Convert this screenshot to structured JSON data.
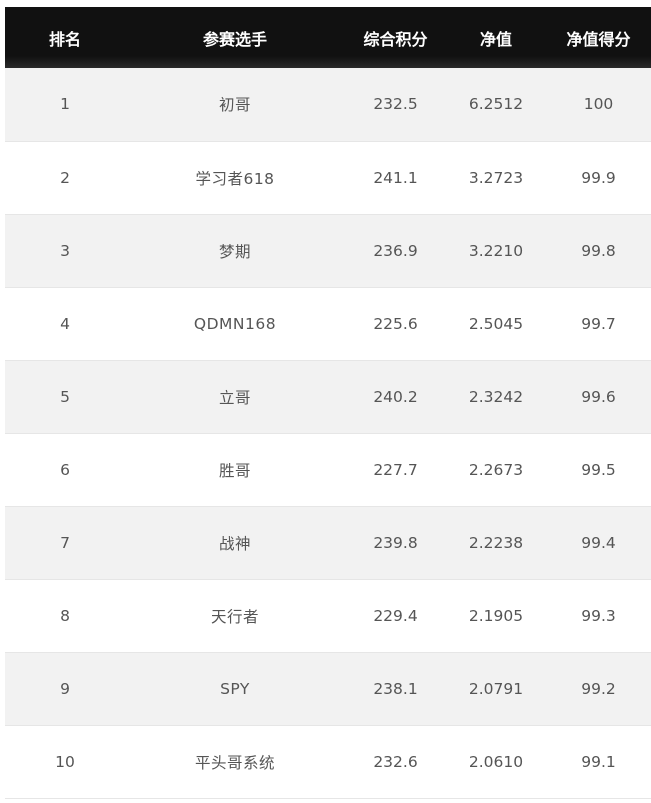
{
  "table": {
    "headers": [
      "排名",
      "参赛选手",
      "综合积分",
      "净值",
      "净值得分"
    ],
    "rows": [
      [
        "1",
        "初哥",
        "232.5",
        "6.2512",
        "100"
      ],
      [
        "2",
        "学习者618",
        "241.1",
        "3.2723",
        "99.9"
      ],
      [
        "3",
        "梦期",
        "236.9",
        "3.2210",
        "99.8"
      ],
      [
        "4",
        "QDMN168",
        "225.6",
        "2.5045",
        "99.7"
      ],
      [
        "5",
        "立哥",
        "240.2",
        "2.3242",
        "99.6"
      ],
      [
        "6",
        "胜哥",
        "227.7",
        "2.2673",
        "99.5"
      ],
      [
        "7",
        "战神",
        "239.8",
        "2.2238",
        "99.4"
      ],
      [
        "8",
        "天行者",
        "229.4",
        "2.1905",
        "99.3"
      ],
      [
        "9",
        "SPY",
        "238.1",
        "2.0791",
        "99.2"
      ],
      [
        "10",
        "平头哥系统",
        "232.6",
        "2.0610",
        "99.1"
      ]
    ]
  },
  "colors": {
    "header_bg": "#111111",
    "header_text": "#ffffff",
    "row_alt_bg": "#f2f2f2",
    "row_bg": "#ffffff",
    "cell_text": "#555555"
  }
}
